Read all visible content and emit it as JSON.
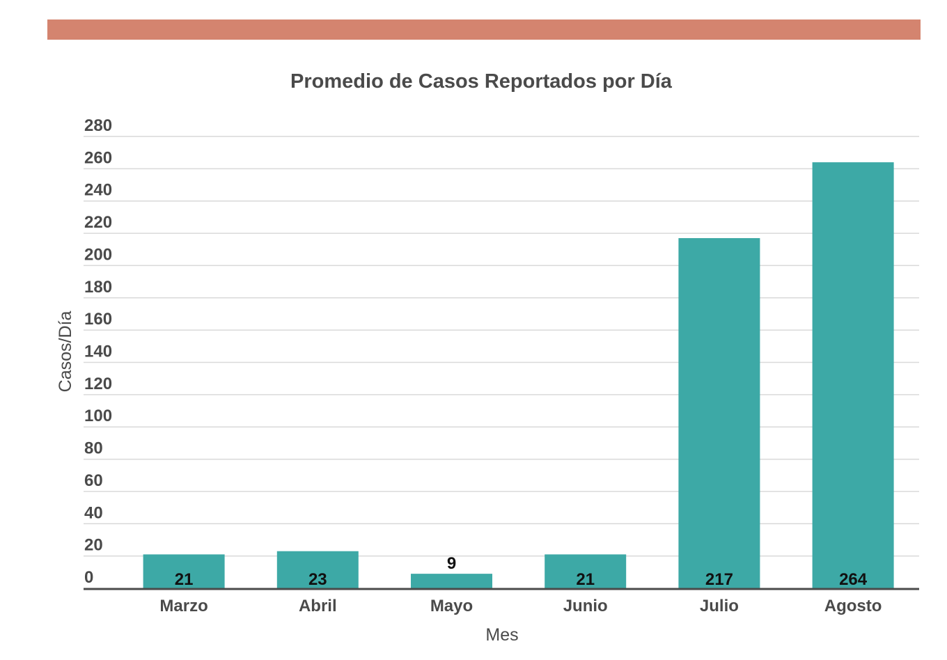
{
  "colors": {
    "top_band": "#d4846f",
    "bar": "#3da9a6",
    "grid": "#d9d9d9",
    "baseline": "#4a4a4a",
    "text": "#4a4a4a",
    "label": "#111111"
  },
  "chart_data": {
    "type": "bar",
    "title": "Promedio de Casos Reportados por Día",
    "xlabel": "Mes",
    "ylabel": "Casos/Día",
    "categories": [
      "Marzo",
      "Abril",
      "Mayo",
      "Junio",
      "Julio",
      "Agosto"
    ],
    "values": [
      21,
      23,
      9,
      21,
      217,
      264
    ],
    "data_labels": [
      "21",
      "23",
      "9",
      "21",
      "217",
      "264"
    ],
    "ylim": [
      0,
      280
    ],
    "yticks": [
      0,
      20,
      40,
      60,
      80,
      100,
      120,
      140,
      160,
      180,
      200,
      220,
      240,
      260,
      280
    ],
    "grid": true,
    "legend": "none"
  }
}
